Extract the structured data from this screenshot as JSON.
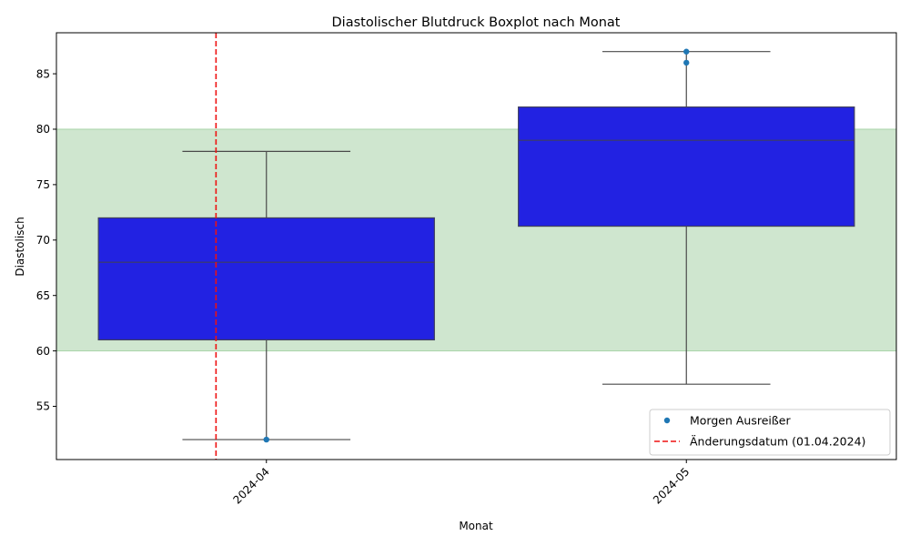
{
  "chart_data": {
    "type": "boxplot",
    "title": "Diastolischer Blutdruck Boxplot nach Monat",
    "xlabel": "Monat",
    "ylabel": "Diastolisch",
    "categories": [
      "2024-04",
      "2024-05"
    ],
    "ylim": [
      50.2,
      88.7
    ],
    "yticks": [
      55,
      60,
      65,
      70,
      75,
      80,
      85
    ],
    "grid": false,
    "boxes": [
      {
        "category": "2024-04",
        "whisker_low": 52,
        "q1": 61,
        "median": 68,
        "q3": 72,
        "whisker_high": 78
      },
      {
        "category": "2024-05",
        "whisker_low": 57,
        "q1": 71.25,
        "median": 79,
        "q3": 82,
        "whisker_high": 87
      }
    ],
    "outliers": [
      {
        "category": "2024-04",
        "values": [
          52
        ]
      },
      {
        "category": "2024-05",
        "values": [
          87,
          86
        ]
      }
    ],
    "normal_range": {
      "low": 60,
      "high": 80
    },
    "change_date_position": -0.12,
    "legend": {
      "placement": "lower-right",
      "entries": [
        {
          "label": "Morgen Ausreißer",
          "kind": "marker"
        },
        {
          "label": "Änderungsdatum (01.04.2024)",
          "kind": "dashed-line"
        }
      ]
    },
    "colors": {
      "box_fill": "#2222e2",
      "box_edge": "#3f3f5f",
      "whisker": "#4a4a4a",
      "outlier": "#1f77b4",
      "normal_band": "#cfe6cf",
      "normal_band_edge": "#a8d4a8",
      "change_line": "#ee1111"
    }
  }
}
